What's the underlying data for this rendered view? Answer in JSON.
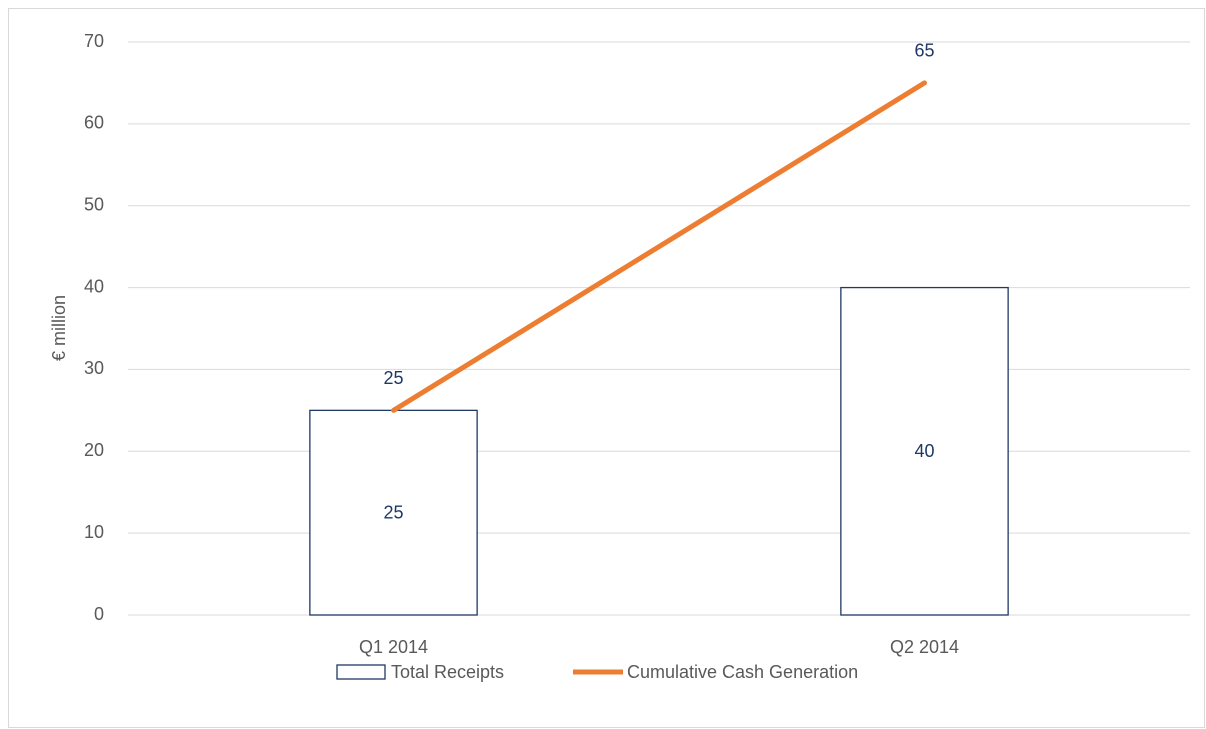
{
  "chart_data": {
    "type": "bar_line",
    "y_label": "€ million",
    "categories": [
      "Q1 2014",
      "Q2 2014"
    ],
    "series": [
      {
        "name": "Total Receipts",
        "type": "bar",
        "color": "#1f3864",
        "values": [
          25,
          40
        ]
      },
      {
        "name": "Cumulative Cash Generation",
        "type": "line",
        "color": "#ed7d31",
        "values": [
          25,
          65
        ]
      }
    ],
    "ylim": [
      0,
      70
    ],
    "yticks": [
      0,
      10,
      20,
      30,
      40,
      50,
      60,
      70
    ],
    "grid": true,
    "legend": "bottom"
  }
}
